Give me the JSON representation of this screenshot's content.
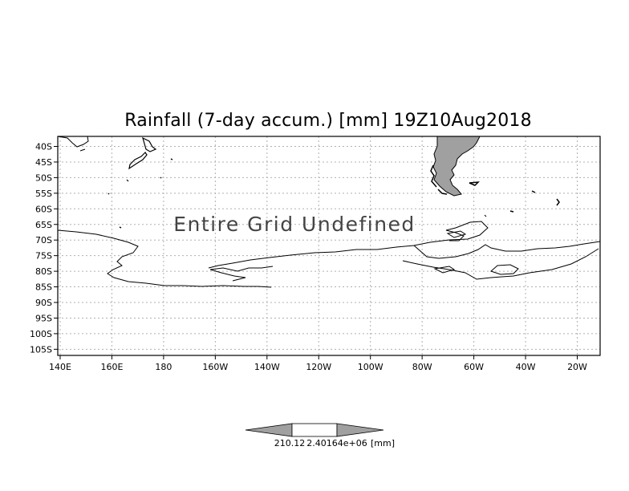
{
  "title": "Rainfall (7-day accum.) [mm] 19Z10Aug2018",
  "message": "Entire Grid Undefined",
  "lat_labels": [
    "40S",
    "45S",
    "50S",
    "55S",
    "60S",
    "65S",
    "70S",
    "75S",
    "80S",
    "85S",
    "90S",
    "95S",
    "100S",
    "105S"
  ],
  "lon_labels": [
    "140E",
    "160E",
    "180",
    "160W",
    "140W",
    "120W",
    "100W",
    "80W",
    "60W",
    "40W",
    "20W"
  ],
  "legend": {
    "label_left": "210.12",
    "label_mid": "2.40164e+06",
    "unit": "[mm]"
  },
  "colors": {
    "land": "#a0a0a0",
    "coast": "#000000",
    "grid": "#b0b0b0"
  }
}
